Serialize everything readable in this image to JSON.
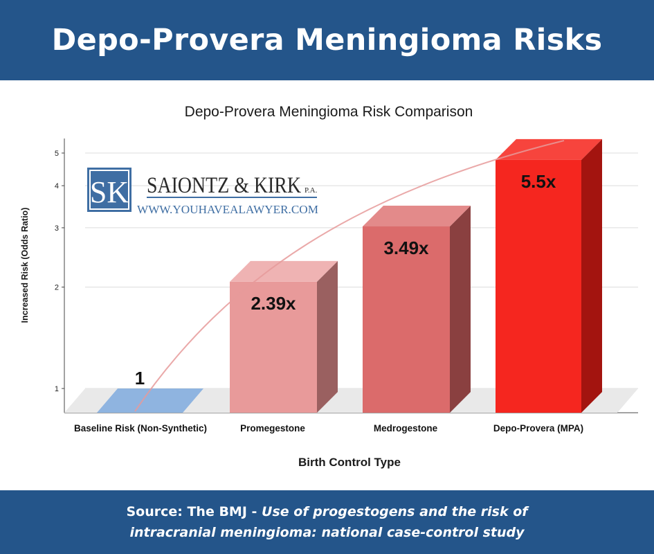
{
  "header": {
    "title": "Depo-Provera Meningioma Risks"
  },
  "chart_data": {
    "type": "bar",
    "title": "Depo-Provera Meningioma Risk Comparison",
    "xlabel": "Birth Control Type",
    "ylabel": "Increased Risk (Odds Ratio)",
    "yscale": "log",
    "ylim": [
      0.9,
      5.5
    ],
    "yticks": [
      1,
      2,
      3,
      4,
      5
    ],
    "categories": [
      "Baseline Risk (Non-Synthetic)",
      "Promegestone",
      "Medrogestone",
      "Depo-Provera (MPA)"
    ],
    "values": [
      1,
      2.39,
      3.49,
      5.5
    ],
    "data_labels": [
      "1",
      "2.39x",
      "3.49x",
      "5.5x"
    ],
    "colors": [
      {
        "front": "#8fb4e0",
        "top": "#a9c6ea",
        "side": "#6f94c2"
      },
      {
        "front": "#e89a9a",
        "top": "#efb3b3",
        "side": "#9a6060"
      },
      {
        "front": "#db6b6b",
        "top": "#e38a8a",
        "side": "#8a4040"
      },
      {
        "front": "#f5261f",
        "top": "#f7443d",
        "side": "#a3140f"
      }
    ],
    "trend_color": "#e69a9a",
    "grid": true
  },
  "watermark": {
    "monogram": "SK",
    "firm": "SAIONTZ & KIRK",
    "suffix": "P.A.",
    "url": "WWW.YOUHAVEALAWYER.COM"
  },
  "footer": {
    "source_prefix": "Source: The BMJ - ",
    "source_title_line1": "Use of progestogens and the risk of",
    "source_title_line2": "intracranial meningioma: national case-control study"
  }
}
